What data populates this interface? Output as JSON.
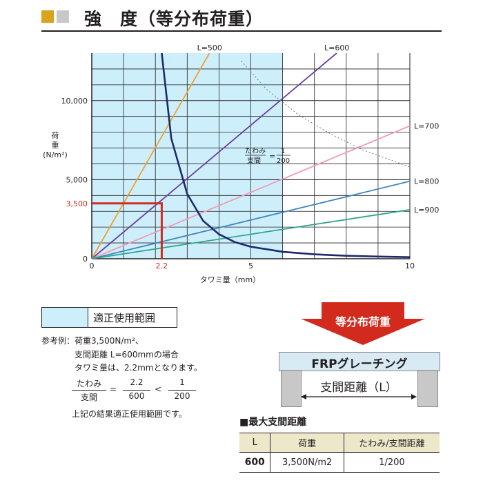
{
  "title": "強　度（等分布荷重）",
  "colors": {
    "accent_gold": "#d9a21f",
    "accent_gray": "#c8c8c8",
    "range_fill": "#cdeffb",
    "arrow_red": "#d22b1e",
    "highlight_red": "#d22b1e",
    "deflection_curve": "#1c2a6b"
  },
  "chart_data": {
    "type": "line",
    "xlabel": "タワミ量（mm）",
    "ylabel_lines": [
      "荷",
      "重",
      "(N/m²)"
    ],
    "xlim": [
      0,
      10
    ],
    "ylim": [
      0,
      13000
    ],
    "x_ticks": [
      "0",
      "5",
      "10"
    ],
    "y_ticks": [
      "0",
      "5,000",
      "10,000"
    ],
    "grid": true,
    "appropriate_range_x": [
      0,
      6
    ],
    "series": [
      {
        "name": "L=500",
        "color": "#f0a030",
        "x": [
          0,
          3.7
        ],
        "y": [
          0,
          13000
        ]
      },
      {
        "name": "L=600",
        "color": "#6a3ea1",
        "x": [
          0,
          7.7
        ],
        "y": [
          0,
          13000
        ]
      },
      {
        "name": "L=700",
        "color": "#f29ab5",
        "x": [
          0,
          10
        ],
        "y": [
          0,
          8400
        ]
      },
      {
        "name": "L=800",
        "color": "#3f84c0",
        "x": [
          0,
          10
        ],
        "y": [
          0,
          4900
        ]
      },
      {
        "name": "L=900",
        "color": "#2fa58c",
        "x": [
          0,
          10
        ],
        "y": [
          0,
          3100
        ]
      }
    ],
    "deflection_limit_curve": {
      "label_num": "たわみ",
      "label_den": "支間",
      "label_eq": "=",
      "label_frac_num": "1",
      "label_frac_den": "200",
      "x": [
        2.2,
        2.5,
        3,
        3.5,
        4,
        4.5,
        5,
        6,
        7,
        8,
        9,
        10
      ],
      "y": [
        13000,
        7600,
        4100,
        2400,
        1550,
        1050,
        760,
        440,
        280,
        190,
        140,
        100
      ]
    },
    "dotted_curve": {
      "x": [
        4.7,
        5.5,
        6.5,
        7.5,
        8.5,
        10
      ],
      "y": [
        12500,
        10700,
        9100,
        7900,
        6900,
        5800
      ]
    },
    "example_marker": {
      "x": 2.2,
      "y": 3500,
      "x_label": "2.2",
      "y_label": "3,500"
    }
  },
  "legend": {
    "label": "適正使用範囲"
  },
  "example": {
    "line1": "参考例：荷重3,500N/m²、",
    "line2": "支間距離 L=600mmの場合",
    "line3": "タワミ量は、2.2mmとなります。",
    "frac1_num": "たわみ",
    "frac1_den": "支間",
    "eq": "=",
    "frac2_num": "2.2",
    "frac2_den": "600",
    "lt": "<",
    "frac3_num": "1",
    "frac3_den": "200",
    "conclusion": "上記の結果適正使用範囲です。"
  },
  "diagram": {
    "arrow_label": "等分布荷重",
    "grating_label": "FRPグレーチング",
    "span_label": "支間距離（L）"
  },
  "table": {
    "heading": "■最大支間距離",
    "headers": [
      "L",
      "荷重",
      "たわみ/支間距離"
    ],
    "row": [
      "600",
      "3,500N/m2",
      "1/200"
    ]
  }
}
